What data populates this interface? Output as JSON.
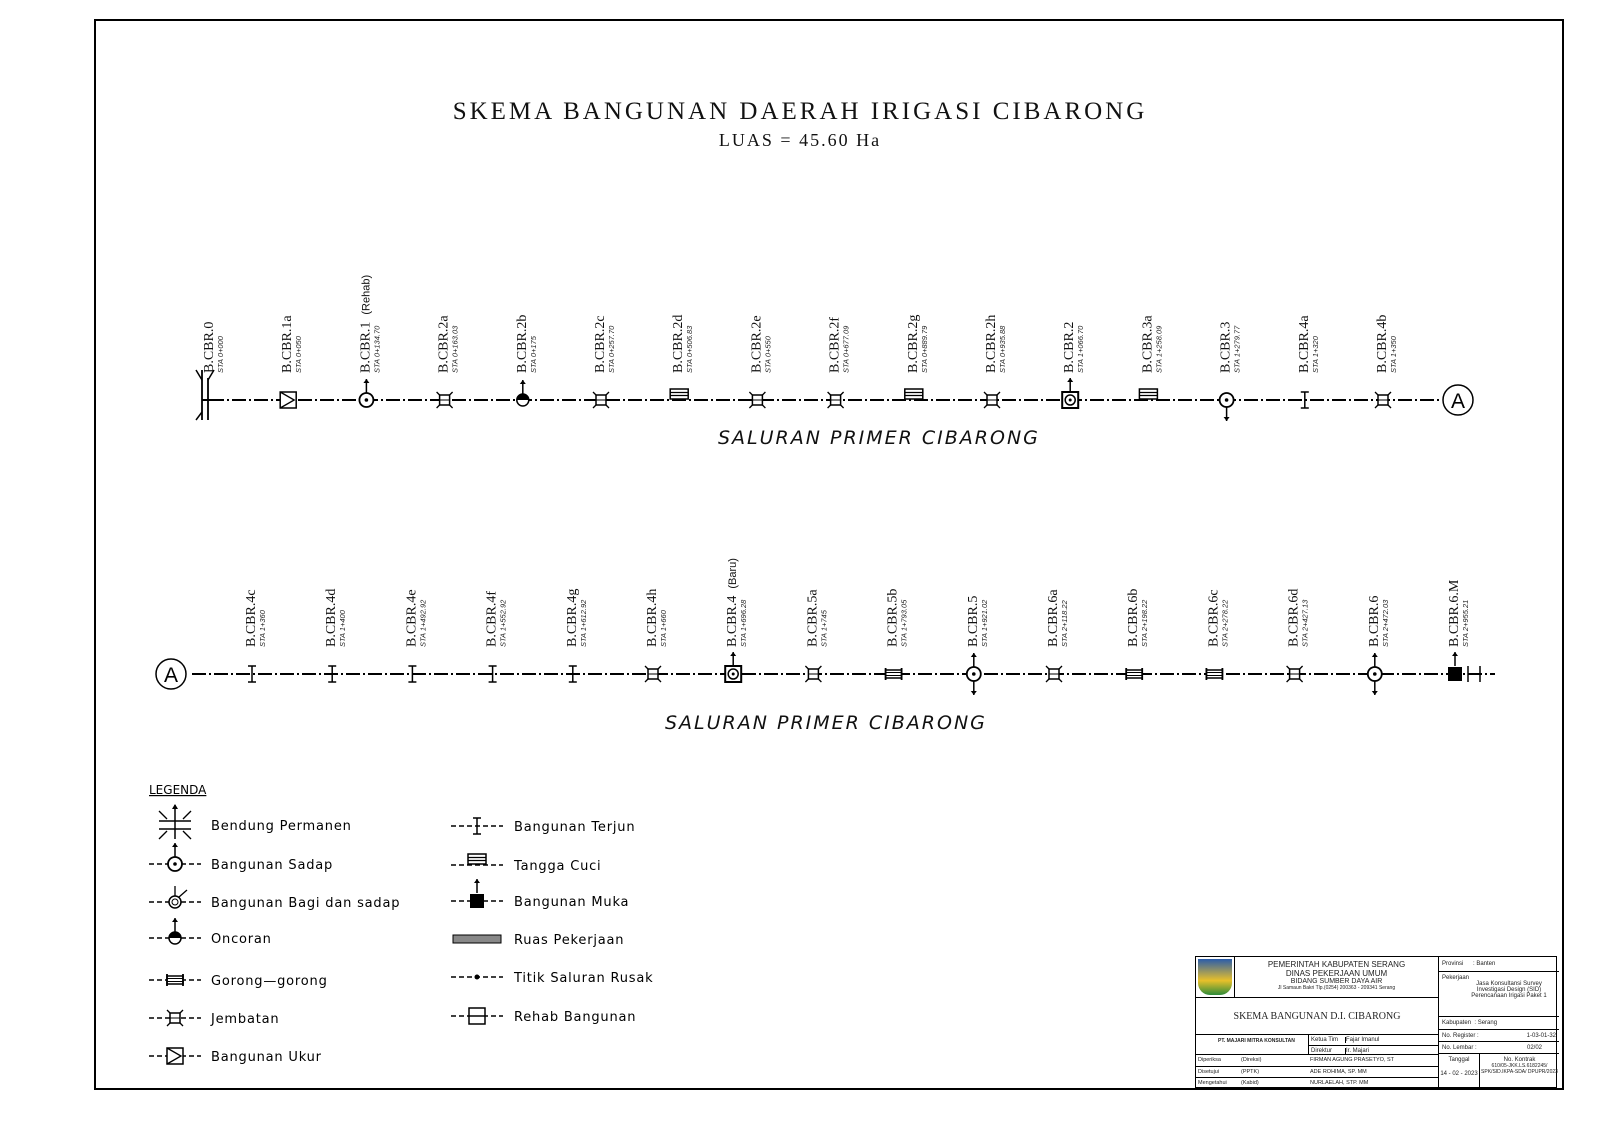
{
  "title": "SKEMA BANGUNAN DAERAH IRIGASI CIBARONG",
  "subtitle": "LUAS = 45.60 Ha",
  "channel_label": "SALURAN PRIMER CIBARONG",
  "connector_label": "A",
  "row1": [
    {
      "name": "B.CBR.0",
      "sta": "STA 0+000",
      "type": "bendung"
    },
    {
      "name": "B.CBR.1a",
      "sta": "STA 0+050",
      "type": "ukur"
    },
    {
      "name": "B.CBR.1",
      "sta": "STA 0+134.70",
      "type": "sadap-up",
      "note": "(Rehab)"
    },
    {
      "name": "B.CBR.2a",
      "sta": "STA 0+163.03",
      "type": "jembatan"
    },
    {
      "name": "B.CBR.2b",
      "sta": "STA 0+175",
      "type": "oncoran"
    },
    {
      "name": "B.CBR.2c",
      "sta": "STA 0+257.70",
      "type": "jembatan"
    },
    {
      "name": "B.CBR.2d",
      "sta": "STA 0+506.83",
      "type": "tangga"
    },
    {
      "name": "B.CBR.2e",
      "sta": "STA 0+550",
      "type": "jembatan"
    },
    {
      "name": "B.CBR.2f",
      "sta": "STA 0+677.09",
      "type": "jembatan"
    },
    {
      "name": "B.CBR.2g",
      "sta": "STA 0+889.79",
      "type": "tangga"
    },
    {
      "name": "B.CBR.2h",
      "sta": "STA 0+935.88",
      "type": "jembatan"
    },
    {
      "name": "B.CBR.2",
      "sta": "STA 1+066.70",
      "type": "rehab-sadap-up"
    },
    {
      "name": "B.CBR.3a",
      "sta": "STA 1+258.09",
      "type": "tangga"
    },
    {
      "name": "B.CBR.3",
      "sta": "STA 1+279.77",
      "type": "sadap-down"
    },
    {
      "name": "B.CBR.4a",
      "sta": "STA 1+320",
      "type": "terjun"
    },
    {
      "name": "B.CBR.4b",
      "sta": "STA 1+350",
      "type": "jembatan"
    }
  ],
  "row2": [
    {
      "name": "B.CBR.4c",
      "sta": "STA 1+360",
      "type": "terjun"
    },
    {
      "name": "B.CBR.4d",
      "sta": "STA 1+400",
      "type": "terjun"
    },
    {
      "name": "B.CBR.4e",
      "sta": "STA 1+492.92",
      "type": "terjun"
    },
    {
      "name": "B.CBR.4f",
      "sta": "STA 1+552.92",
      "type": "terjun"
    },
    {
      "name": "B.CBR.4g",
      "sta": "STA 1+612.92",
      "type": "terjun"
    },
    {
      "name": "B.CBR.4h",
      "sta": "STA 1+660",
      "type": "jembatan"
    },
    {
      "name": "B.CBR.4",
      "sta": "STA 1+696.28",
      "type": "rehab-sadap-up",
      "note": "(Baru)"
    },
    {
      "name": "B.CBR.5a",
      "sta": "STA 1+745",
      "type": "jembatan"
    },
    {
      "name": "B.CBR.5b",
      "sta": "STA 1+793.05",
      "type": "gorong"
    },
    {
      "name": "B.CBR.5",
      "sta": "STA 1+921.02",
      "type": "sadap-updown"
    },
    {
      "name": "B.CBR.6a",
      "sta": "STA 2+118.22",
      "type": "jembatan"
    },
    {
      "name": "B.CBR.6b",
      "sta": "STA 2+198.22",
      "type": "gorong"
    },
    {
      "name": "B.CBR.6c",
      "sta": "STA 2+278.22",
      "type": "gorong"
    },
    {
      "name": "B.CBR.6d",
      "sta": "STA 2+427.13",
      "type": "jembatan"
    },
    {
      "name": "B.CBR.6",
      "sta": "STA 2+472.03",
      "type": "sadap-updown"
    },
    {
      "name": "B.CBR.6.M",
      "sta": "STA 2+955.21",
      "type": "muka"
    }
  ],
  "legend": {
    "title": "LEGENDA",
    "left": [
      {
        "label": "Bendung Permanen",
        "type": "bendung"
      },
      {
        "label": "Bangunan Sadap",
        "type": "sadap-up"
      },
      {
        "label": "Bangunan Bagi dan sadap",
        "type": "bagi"
      },
      {
        "label": "Oncoran",
        "type": "oncoran"
      },
      {
        "label": "Gorong—gorong",
        "type": "gorong"
      },
      {
        "label": "Jembatan",
        "type": "jembatan"
      },
      {
        "label": "Bangunan Ukur",
        "type": "ukur"
      }
    ],
    "right": [
      {
        "label": "Bangunan Terjun",
        "type": "terjun"
      },
      {
        "label": "Tangga Cuci",
        "type": "tangga"
      },
      {
        "label": "Bangunan Muka",
        "type": "muka"
      },
      {
        "label": "Ruas Pekerjaan",
        "type": "ruas"
      },
      {
        "label": "Titik Saluran Rusak",
        "type": "titik"
      },
      {
        "label": "Rehab Bangunan",
        "type": "rehab"
      }
    ]
  },
  "title_block": {
    "agency1": "PEMERINTAH KABUPATEN SERANG",
    "agency2": "DINAS PEKERJAAN UMUM",
    "agency3": "BIDANG SUMBER DAYA AIR",
    "address": "Jl Samaun Bakri Tlp.(0254) 200363 - 209341 Serang",
    "drawing_title": "SKEMA BANGUNAN D.I. CIBARONG",
    "consultant": "PT. MAJARI MITRA KONSULTAN",
    "provinsi_label": "Provinsi",
    "provinsi": ": Banten",
    "pekerjaan_label": "Pekerjaan",
    "pekerjaan": "Jasa Konsultansi Survey Investigasi Design (SID) Perencanaan Irigasi Paket 1",
    "kabupaten_label": "Kabupaten",
    "kabupaten": ": Serang",
    "register_label": "No. Register :",
    "register": "1-03-01-32",
    "lembar_label": "No. Lembar :",
    "lembar": "02/02",
    "tanggal_label": "Tanggal",
    "tanggal": "14 - 02 - 2023",
    "kontrak_label": "No. Kontrak",
    "kontrak": "610/05-JKK.LS.6182245/ SPK/SID.IKPA-SDA/ DPUPR/2023",
    "staff": [
      {
        "role": "Ketua Tim",
        "name": "Fajar Imanul"
      },
      {
        "role": "Direktur",
        "name": "Ir. Majari"
      }
    ],
    "approvals": [
      {
        "role": "Diperiksa",
        "pos": "(Direksi)",
        "name": "FIRMAN AGUNG PRASETYO, ST"
      },
      {
        "role": "Disetujui",
        "pos": "(PPTK)",
        "name": "ADE ROHIMA, SP. MM"
      },
      {
        "role": "Mengetahui",
        "pos": "(Kabid)",
        "name": "NURLAELAH, STP. MM"
      }
    ]
  }
}
